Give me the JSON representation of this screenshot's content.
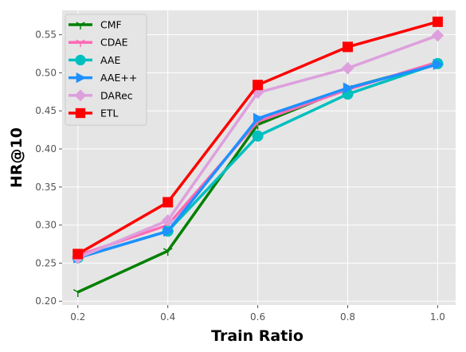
{
  "chart_data": {
    "type": "line",
    "xlabel": "Train Ratio",
    "ylabel": "HR@10",
    "x": [
      0.2,
      0.4,
      0.6,
      0.8,
      1.0
    ],
    "xticks": [
      "0.2",
      "0.4",
      "0.6",
      "0.8",
      "1.0"
    ],
    "yticks": [
      "0.20",
      "0.25",
      "0.30",
      "0.35",
      "0.40",
      "0.45",
      "0.50",
      "0.55"
    ],
    "xlim": [
      0.165,
      1.04
    ],
    "ylim": [
      0.195,
      0.582
    ],
    "grid": true,
    "legend_position": "upper-left",
    "background": "#e5e5e5",
    "series": [
      {
        "name": "CMF",
        "color": "#008000",
        "marker": "tri_down",
        "values": [
          0.212,
          0.266,
          0.432,
          0.48,
          0.512
        ]
      },
      {
        "name": "CDAE",
        "color": "#ff69b4",
        "marker": "tri_down",
        "values": [
          0.26,
          0.3,
          0.436,
          0.478,
          0.514
        ]
      },
      {
        "name": "AAE",
        "color": "#00bfbf",
        "marker": "circle",
        "values": [
          0.257,
          0.292,
          0.417,
          0.472,
          0.512
        ]
      },
      {
        "name": "AAE++",
        "color": "#1e90ff",
        "marker": "triangle_right",
        "values": [
          0.257,
          0.292,
          0.44,
          0.48,
          0.511
        ]
      },
      {
        "name": "DARec",
        "color": "#dda0dd",
        "marker": "diamond",
        "values": [
          0.257,
          0.306,
          0.474,
          0.506,
          0.549
        ]
      },
      {
        "name": "ETL",
        "color": "#ff0000",
        "marker": "square",
        "values": [
          0.262,
          0.33,
          0.484,
          0.534,
          0.567
        ]
      }
    ]
  }
}
